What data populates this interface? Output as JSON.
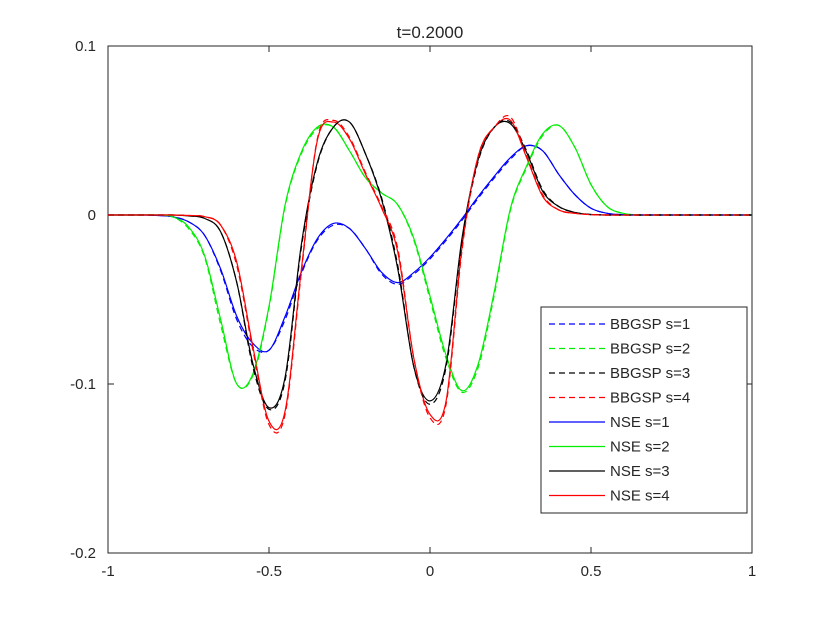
{
  "chart_data": {
    "type": "line",
    "title": "t=0.2000",
    "xlabel": "",
    "ylabel": "",
    "xlim": [
      -1,
      1
    ],
    "ylim": [
      -0.2,
      0.1
    ],
    "x_ticks": [
      "-1",
      "-0.5",
      "0",
      "0.5",
      "1"
    ],
    "y_ticks": [
      "0.1",
      "0",
      "-0.1",
      "-0.2"
    ],
    "grid": false,
    "legend_position": "bottom-right",
    "x": [
      -1,
      -0.95,
      -0.9,
      -0.85,
      -0.8,
      -0.75,
      -0.7,
      -0.65,
      -0.6,
      -0.55,
      -0.5,
      -0.45,
      -0.4,
      -0.35,
      -0.3,
      -0.25,
      -0.2,
      -0.15,
      -0.1,
      -0.05,
      0,
      0.05,
      0.1,
      0.15,
      0.2,
      0.25,
      0.3,
      0.35,
      0.4,
      0.45,
      0.5,
      0.55,
      0.6,
      0.65,
      0.7,
      0.75,
      0.8,
      0.85,
      0.9,
      0.95,
      1
    ],
    "series": [
      {
        "name": "BBGSP s=1",
        "color": "#0000ff",
        "dash": true,
        "values": [
          0,
          0,
          0,
          -0.0002,
          -0.001,
          -0.004,
          -0.012,
          -0.033,
          -0.062,
          -0.078,
          -0.08,
          -0.062,
          -0.035,
          -0.015,
          -0.006,
          -0.008,
          -0.02,
          -0.035,
          -0.041,
          -0.035,
          -0.026,
          -0.015,
          -0.003,
          0.01,
          0.022,
          0.033,
          0.041,
          0.038,
          0.024,
          0.012,
          0.004,
          0.001,
          0.0002,
          0,
          0,
          0,
          0,
          0,
          0,
          0,
          0
        ]
      },
      {
        "name": "BBGSP s=2",
        "color": "#00ee00",
        "dash": true,
        "values": [
          0,
          0,
          0,
          0,
          -0.001,
          -0.008,
          -0.025,
          -0.065,
          -0.1,
          -0.095,
          -0.055,
          0.005,
          0.036,
          0.051,
          0.052,
          0.038,
          0.022,
          0.013,
          0.006,
          -0.015,
          -0.05,
          -0.085,
          -0.105,
          -0.09,
          -0.047,
          0.003,
          0.028,
          0.047,
          0.053,
          0.04,
          0.018,
          0.005,
          0.001,
          0,
          0,
          0,
          0,
          0,
          0,
          0,
          0
        ]
      },
      {
        "name": "BBGSP s=3",
        "color": "#000000",
        "dash": true,
        "values": [
          0,
          0,
          0,
          0,
          0,
          -0.0005,
          -0.002,
          -0.01,
          -0.04,
          -0.09,
          -0.115,
          -0.098,
          -0.02,
          0.03,
          0.052,
          0.055,
          0.036,
          0.01,
          -0.03,
          -0.09,
          -0.112,
          -0.09,
          -0.015,
          0.032,
          0.052,
          0.055,
          0.038,
          0.015,
          0.005,
          0.0015,
          0.0003,
          0,
          0,
          0,
          0,
          0,
          0,
          0,
          0,
          0,
          0
        ]
      },
      {
        "name": "BBGSP s=4",
        "color": "#ff0000",
        "dash": true,
        "values": [
          0,
          0,
          0,
          0,
          0,
          -0.0003,
          -0.001,
          -0.006,
          -0.03,
          -0.08,
          -0.124,
          -0.118,
          -0.035,
          0.045,
          0.056,
          0.046,
          0.025,
          0.005,
          -0.02,
          -0.085,
          -0.12,
          -0.112,
          -0.02,
          0.035,
          0.052,
          0.058,
          0.035,
          0.012,
          0.003,
          0.001,
          0.0002,
          0,
          0,
          0,
          0,
          0,
          0,
          0,
          0,
          0,
          0
        ]
      },
      {
        "name": "NSE s=1",
        "color": "#0000ff",
        "dash": false,
        "values": [
          0,
          0,
          0,
          -0.0002,
          -0.001,
          -0.004,
          -0.012,
          -0.032,
          -0.06,
          -0.076,
          -0.08,
          -0.06,
          -0.034,
          -0.014,
          -0.005,
          -0.008,
          -0.02,
          -0.034,
          -0.04,
          -0.034,
          -0.025,
          -0.014,
          -0.002,
          0.011,
          0.023,
          0.034,
          0.041,
          0.038,
          0.024,
          0.012,
          0.004,
          0.001,
          0.0002,
          0,
          0,
          0,
          0,
          0,
          0,
          0,
          0
        ]
      },
      {
        "name": "NSE s=2",
        "color": "#00ee00",
        "dash": false,
        "values": [
          0,
          0,
          0,
          0,
          -0.001,
          -0.007,
          -0.024,
          -0.062,
          -0.1,
          -0.094,
          -0.054,
          0.006,
          0.037,
          0.052,
          0.052,
          0.038,
          0.022,
          0.013,
          0.006,
          -0.014,
          -0.048,
          -0.083,
          -0.104,
          -0.088,
          -0.045,
          0.004,
          0.029,
          0.048,
          0.053,
          0.04,
          0.018,
          0.005,
          0.001,
          0,
          0,
          0,
          0,
          0,
          0,
          0,
          0
        ]
      },
      {
        "name": "NSE s=3",
        "color": "#000000",
        "dash": false,
        "values": [
          0,
          0,
          0,
          0,
          0,
          -0.0005,
          -0.002,
          -0.01,
          -0.04,
          -0.088,
          -0.114,
          -0.096,
          -0.018,
          0.031,
          0.052,
          0.055,
          0.036,
          0.009,
          -0.032,
          -0.09,
          -0.11,
          -0.088,
          -0.013,
          0.033,
          0.052,
          0.054,
          0.037,
          0.014,
          0.005,
          0.0015,
          0.0003,
          0,
          0,
          0,
          0,
          0,
          0,
          0,
          0,
          0,
          0
        ]
      },
      {
        "name": "NSE s=4",
        "color": "#ff0000",
        "dash": false,
        "values": [
          0,
          0,
          0,
          0,
          0,
          -0.0003,
          -0.001,
          -0.006,
          -0.028,
          -0.078,
          -0.122,
          -0.116,
          -0.033,
          0.044,
          0.055,
          0.045,
          0.024,
          0.004,
          -0.022,
          -0.085,
          -0.118,
          -0.11,
          -0.018,
          0.035,
          0.052,
          0.056,
          0.034,
          0.011,
          0.003,
          0.001,
          0.0002,
          0,
          0,
          0,
          0,
          0,
          0,
          0,
          0,
          0,
          0
        ]
      }
    ]
  }
}
